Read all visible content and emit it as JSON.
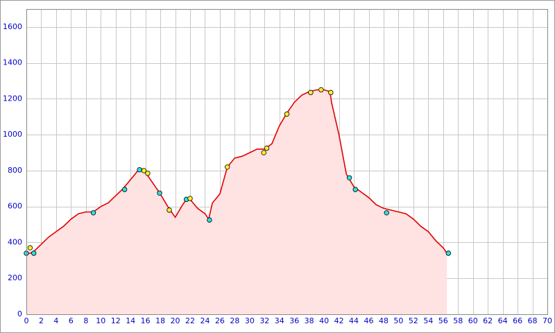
{
  "chart_data": {
    "type": "line",
    "xlim": [
      0,
      70
    ],
    "ylim": [
      0,
      1700
    ],
    "xticks": [
      0,
      2,
      4,
      6,
      8,
      10,
      12,
      14,
      16,
      18,
      20,
      22,
      24,
      26,
      28,
      30,
      32,
      34,
      36,
      38,
      40,
      42,
      44,
      46,
      48,
      50,
      52,
      54,
      56,
      58,
      60,
      62,
      64,
      66,
      68,
      70
    ],
    "yticks": [
      0,
      200,
      400,
      600,
      800,
      1000,
      1200,
      1400,
      1600
    ],
    "grid": true,
    "series": [
      {
        "type": "area",
        "color": "#e00000",
        "fill": "#ffe2e2",
        "x": [
          0,
          0.5,
          1,
          2,
          3,
          4,
          5,
          6,
          7,
          8,
          9,
          10,
          11,
          12,
          13,
          14,
          15,
          15.5,
          16,
          17,
          18,
          19,
          19.5,
          20,
          21,
          21.5,
          22,
          23,
          24,
          24.5,
          25,
          26,
          27,
          28,
          29,
          30,
          31,
          32,
          33,
          34,
          35,
          36,
          37,
          38,
          39,
          40,
          40.8,
          41,
          42,
          43,
          44,
          45,
          46,
          47,
          48,
          49,
          50,
          51,
          52,
          53,
          54,
          55,
          56,
          56.5
        ],
        "values": [
          340,
          340,
          350,
          390,
          430,
          460,
          490,
          530,
          560,
          570,
          570,
          600,
          620,
          660,
          700,
          750,
          800,
          810,
          790,
          730,
          670,
          600,
          570,
          540,
          610,
          640,
          640,
          590,
          560,
          530,
          620,
          670,
          820,
          870,
          880,
          900,
          920,
          920,
          950,
          1050,
          1120,
          1180,
          1220,
          1240,
          1250,
          1250,
          1240,
          1180,
          1000,
          780,
          710,
          680,
          650,
          610,
          590,
          580,
          570,
          560,
          530,
          490,
          460,
          410,
          370,
          340
        ]
      },
      {
        "type": "scatter",
        "color": "#33dddd",
        "x": [
          0,
          1,
          9,
          13.2,
          15.2,
          17.9,
          21.5,
          24.6,
          43.4,
          44.2,
          48.4,
          56.7
        ],
        "values": [
          340,
          340,
          565,
          695,
          805,
          675,
          640,
          525,
          760,
          695,
          565,
          340
        ]
      },
      {
        "type": "scatter",
        "color": "#ffee33",
        "x": [
          0.5,
          15.8,
          16.3,
          19.2,
          22,
          27,
          31.9,
          32.3,
          35,
          38.2,
          39.6,
          40.9
        ],
        "values": [
          370,
          800,
          785,
          580,
          645,
          820,
          900,
          925,
          1115,
          1235,
          1250,
          1235
        ]
      }
    ]
  }
}
